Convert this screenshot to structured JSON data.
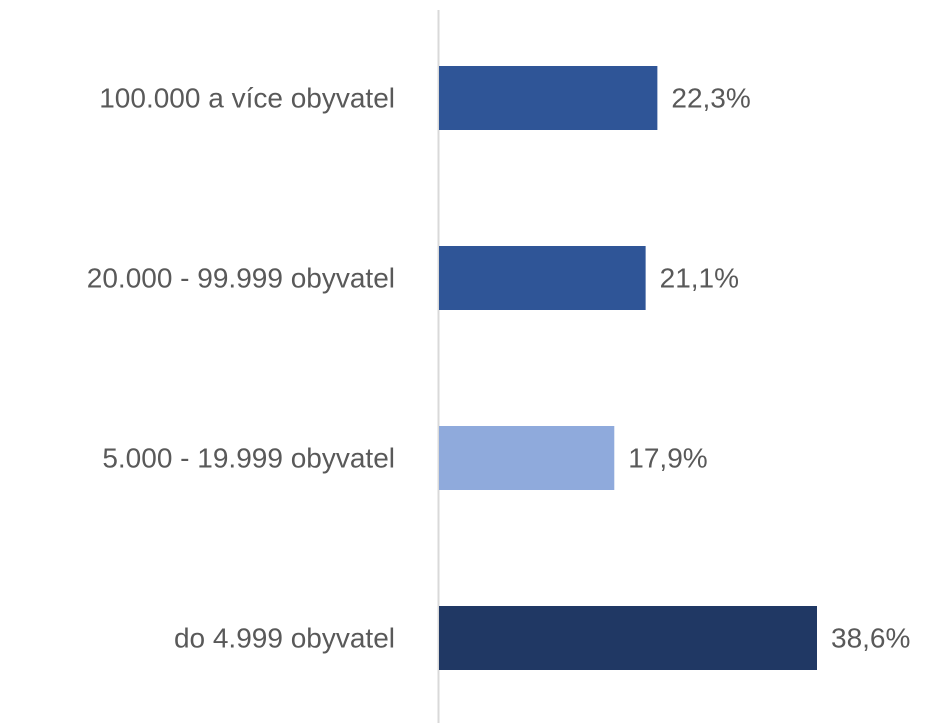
{
  "chart_data": {
    "type": "barh",
    "categories": [
      "100.000 a více obyvatel",
      "20.000 - 99.999 obyvatel",
      "5.000 - 19.999 obyvatel",
      "do 4.999 obyvatel"
    ],
    "values": [
      22.3,
      21.1,
      17.9,
      38.6
    ],
    "value_labels": [
      "22,3%",
      "21,1%",
      "17,9%",
      "38,6%"
    ],
    "colors": [
      "#2f5597",
      "#2f5597",
      "#8faadc",
      "#203864"
    ]
  }
}
